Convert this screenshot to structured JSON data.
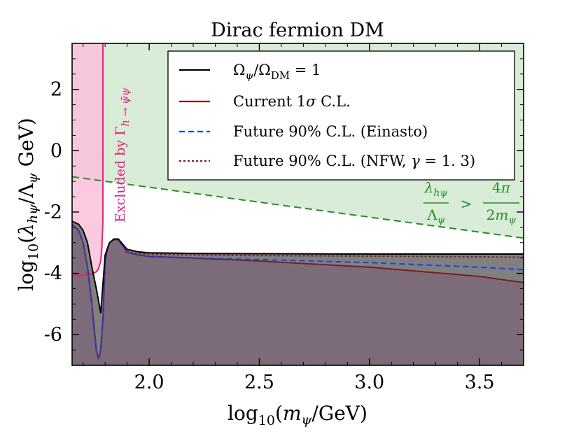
{
  "chart_data": {
    "type": "line",
    "title": "Dirac fermion DM",
    "xlabel": "log₁₀(mψ/GeV)",
    "ylabel": "log₁₀(λₕψ/Λψ GeV)",
    "xlim": [
      1.65,
      3.7
    ],
    "ylim": [
      -7.0,
      3.5
    ],
    "x_ticks": [
      2.0,
      2.5,
      3.0,
      3.5
    ],
    "x_tick_labels": [
      "2.0",
      "2.5",
      "3.0",
      "3.5"
    ],
    "y_ticks": [
      2,
      0,
      -2,
      -4,
      -6
    ],
    "y_tick_labels": [
      "2",
      "0",
      "-2",
      "-4",
      "-6"
    ],
    "grid": false,
    "legend_position": "top-right",
    "colors": {
      "relic": "#000000",
      "current": "#7a1f1f",
      "einasto": "#1f3fe6",
      "nfw": "#7a1f1f",
      "excluded": "#e8217d",
      "perturbative": "#2a8a2a",
      "excluded_fill": "#fbbfdb",
      "perturbative_fill": "#d8ecd8",
      "relic_fill": "#808080",
      "current_fill": "#7b6878"
    },
    "series": [
      {
        "name": "Ωψ/ΩDM = 1",
        "style": "solid",
        "x": [
          1.65,
          1.68,
          1.7,
          1.72,
          1.74,
          1.76,
          1.78,
          1.8,
          1.81,
          1.82,
          1.84,
          1.86,
          1.88,
          1.9,
          1.95,
          2.0,
          2.2,
          2.5,
          3.0,
          3.5,
          3.7
        ],
        "y": [
          -2.3,
          -2.4,
          -2.6,
          -3.0,
          -3.8,
          -4.5,
          -5.3,
          -3.4,
          -3.2,
          -3.0,
          -2.88,
          -2.88,
          -3.05,
          -3.22,
          -3.3,
          -3.33,
          -3.35,
          -3.36,
          -3.37,
          -3.37,
          -3.37
        ]
      },
      {
        "name": "Current 1σ C.L.",
        "style": "solid",
        "x": [
          1.65,
          1.68,
          1.7,
          1.72,
          1.74,
          1.75,
          1.76,
          1.77,
          1.78,
          1.79,
          1.8,
          1.81,
          1.82,
          1.84,
          1.86,
          1.88,
          1.9,
          1.95,
          2.0,
          2.2,
          2.5,
          3.0,
          3.5,
          3.7
        ],
        "y": [
          -2.4,
          -2.6,
          -3.0,
          -3.8,
          -5.0,
          -5.8,
          -6.5,
          -6.8,
          -6.5,
          -5.5,
          -3.6,
          -3.2,
          -3.0,
          -2.9,
          -2.9,
          -3.1,
          -3.32,
          -3.4,
          -3.45,
          -3.5,
          -3.6,
          -3.8,
          -4.1,
          -4.3
        ]
      },
      {
        "name": "Future 90% C.L. (Einasto)",
        "style": "dashed",
        "x": [
          1.65,
          1.68,
          1.7,
          1.72,
          1.74,
          1.75,
          1.76,
          1.77,
          1.78,
          1.79,
          1.8,
          1.81,
          1.82,
          1.84,
          1.86,
          1.88,
          1.9,
          1.95,
          2.0,
          2.2,
          2.5,
          3.0,
          3.5,
          3.7
        ],
        "y": [
          -2.4,
          -2.6,
          -3.0,
          -3.8,
          -5.0,
          -5.8,
          -6.5,
          -6.8,
          -6.5,
          -5.5,
          -3.6,
          -3.2,
          -3.0,
          -2.9,
          -2.9,
          -3.1,
          -3.32,
          -3.4,
          -3.45,
          -3.5,
          -3.55,
          -3.65,
          -3.8,
          -3.88
        ]
      },
      {
        "name": "Future 90% C.L. (NFW, γ = 1.3)",
        "style": "dotted",
        "x": [
          1.65,
          1.68,
          1.7,
          1.72,
          1.74,
          1.75,
          1.76,
          1.77,
          1.78,
          1.79,
          1.8,
          1.81,
          1.82,
          1.84,
          1.86,
          1.88,
          1.9,
          1.95,
          2.0,
          2.2,
          2.5,
          3.0,
          3.5,
          3.7
        ],
        "y": [
          -2.4,
          -2.6,
          -3.0,
          -3.8,
          -5.0,
          -5.8,
          -6.5,
          -6.8,
          -6.5,
          -5.5,
          -3.6,
          -3.2,
          -3.0,
          -2.9,
          -2.9,
          -3.1,
          -3.3,
          -3.36,
          -3.38,
          -3.4,
          -3.42,
          -3.44,
          -3.46,
          -3.48
        ]
      }
    ],
    "perturbative_bound": {
      "label": "λₕψ/Λψ > 4π/2mψ",
      "x": [
        1.65,
        3.7
      ],
      "y": [
        -0.85,
        -2.85
      ]
    },
    "higgs_invisible_exclusion": {
      "label": "Excluded by Γh→ψ̅ψ",
      "x_max": 1.79,
      "lower_boundary_x": [
        1.65,
        1.7,
        1.74,
        1.76,
        1.77,
        1.78,
        1.785,
        1.79
      ],
      "lower_boundary_y": [
        -4.05,
        -4.05,
        -4.02,
        -3.95,
        -3.85,
        -3.6,
        -3.2,
        -2.3
      ]
    }
  }
}
